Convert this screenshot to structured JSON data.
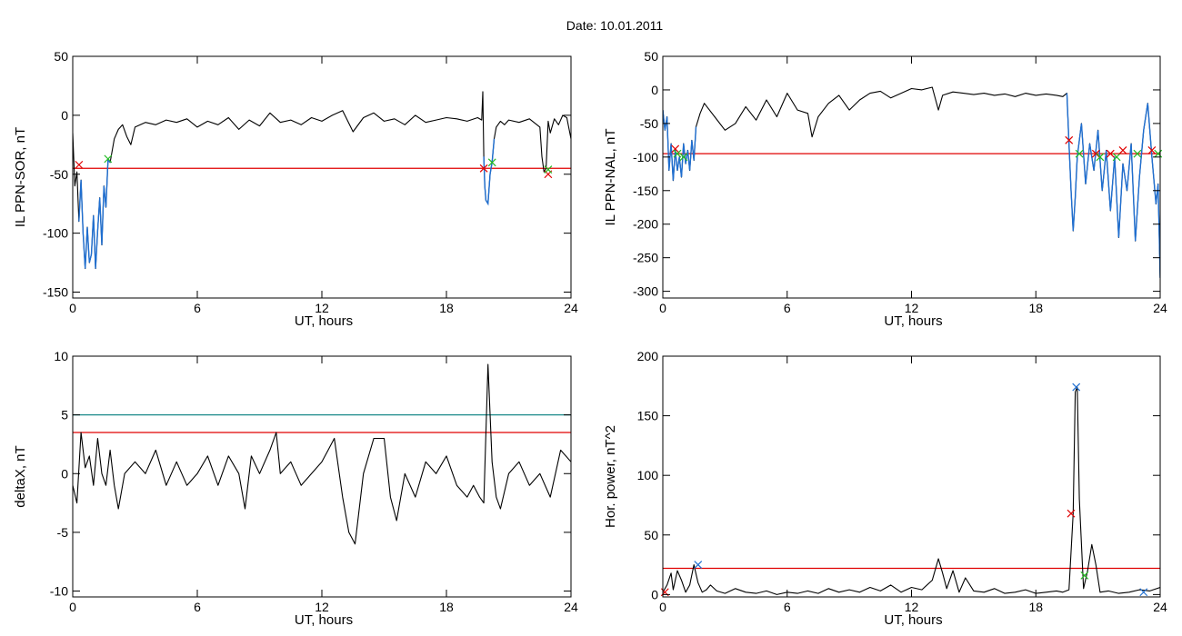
{
  "page_title": "Date:  10.01.2011",
  "colors": {
    "trace": "#000000",
    "highlight": "#1f6fd1",
    "threshold": "#e00000",
    "threshold_alt": "#1a8a8a",
    "marker_red": "#e00000",
    "marker_green": "#22bb22",
    "marker_blue": "#1f6fd1"
  },
  "chart_data": [
    {
      "id": "sor",
      "type": "line",
      "xlabel": "UT, hours",
      "ylabel": "IL PPN-SOR, nT",
      "xlim": [
        0,
        24
      ],
      "ylim": [
        -155,
        50
      ],
      "xticks": [
        0,
        6,
        12,
        18,
        24
      ],
      "yticks": [
        -150,
        -100,
        -50,
        0,
        50
      ],
      "thresholds": [
        {
          "value": -45,
          "color": "#e00000"
        }
      ],
      "series": [
        {
          "color": "#000000",
          "x": [
            0,
            0.1,
            0.2,
            0.3,
            0.4,
            0.5,
            0.6,
            0.7,
            0.8,
            0.9,
            1.0,
            1.1,
            1.2,
            1.3,
            1.4,
            1.5,
            1.6,
            1.7,
            1.8,
            2.0,
            2.2,
            2.4,
            2.6,
            2.8,
            3.0,
            3.5,
            4.0,
            4.5,
            5.0,
            5.5,
            6.0,
            6.5,
            7.0,
            7.5,
            8.0,
            8.5,
            9.0,
            9.5,
            10.0,
            10.5,
            11.0,
            11.5,
            12.0,
            12.5,
            13.0,
            13.5,
            14.0,
            14.5,
            15.0,
            15.5,
            16.0,
            16.5,
            17.0,
            17.5,
            18.0,
            18.5,
            19.0,
            19.5,
            19.7,
            19.75,
            19.8,
            19.85,
            19.9,
            20.0,
            20.1,
            20.2,
            20.3,
            20.4,
            20.6,
            20.8,
            21.0,
            21.5,
            22.0,
            22.5,
            22.6,
            22.7,
            22.8,
            22.9,
            23.0,
            23.2,
            23.4,
            23.6,
            23.8,
            24.0
          ],
          "y": [
            -15,
            -60,
            -48,
            -90,
            -55,
            -100,
            -130,
            -95,
            -125,
            -118,
            -85,
            -130,
            -98,
            -70,
            -110,
            -60,
            -78,
            -38,
            -40,
            -20,
            -12,
            -8,
            -18,
            -25,
            -10,
            -6,
            -8,
            -4,
            -6,
            -3,
            -10,
            -5,
            -8,
            -2,
            -12,
            -4,
            -9,
            2,
            -6,
            -4,
            -8,
            -2,
            -5,
            0,
            4,
            -14,
            -2,
            2,
            -5,
            -3,
            -8,
            0,
            -6,
            -4,
            -2,
            -3,
            -5,
            -2,
            -4,
            20,
            -35,
            -60,
            -72,
            -75,
            -50,
            -40,
            -20,
            -10,
            -5,
            -8,
            -4,
            -6,
            -3,
            -10,
            -35,
            -48,
            -45,
            -5,
            -15,
            -3,
            -8,
            0,
            -2,
            -20
          ],
          "highlight": [
            [
              0.3,
              1.8
            ],
            [
              19.8,
              20.3
            ]
          ]
        }
      ],
      "markers": [
        {
          "x": 0.3,
          "y": -42,
          "color": "#e00000"
        },
        {
          "x": 1.7,
          "y": -37,
          "color": "#22bb22"
        },
        {
          "x": 19.8,
          "y": -45,
          "color": "#e00000"
        },
        {
          "x": 20.2,
          "y": -40,
          "color": "#22bb22"
        },
        {
          "x": 22.9,
          "y": -50,
          "color": "#e00000"
        },
        {
          "x": 22.9,
          "y": -46,
          "color": "#22bb22"
        }
      ]
    },
    {
      "id": "nal",
      "type": "line",
      "xlabel": "UT, hours",
      "ylabel": "IL PPN-NAL, nT",
      "xlim": [
        0,
        24
      ],
      "ylim": [
        -310,
        50
      ],
      "xticks": [
        0,
        6,
        12,
        18,
        24
      ],
      "yticks": [
        -300,
        -250,
        -200,
        -150,
        -100,
        -50,
        0,
        50
      ],
      "thresholds": [
        {
          "value": -95,
          "color": "#e00000"
        }
      ],
      "series": [
        {
          "color": "#000000",
          "x": [
            0,
            0.1,
            0.2,
            0.3,
            0.4,
            0.5,
            0.6,
            0.7,
            0.8,
            0.9,
            1.0,
            1.1,
            1.2,
            1.3,
            1.4,
            1.5,
            1.6,
            1.8,
            2.0,
            2.5,
            3.0,
            3.5,
            4.0,
            4.5,
            5.0,
            5.5,
            6.0,
            6.5,
            7.0,
            7.2,
            7.5,
            8.0,
            8.5,
            9.0,
            9.5,
            10.0,
            10.5,
            11.0,
            11.5,
            12.0,
            12.5,
            13.0,
            13.3,
            13.5,
            14.0,
            14.5,
            15.0,
            15.5,
            16.0,
            16.5,
            17.0,
            17.5,
            18.0,
            18.5,
            19.0,
            19.3,
            19.5,
            19.6,
            19.7,
            19.8,
            19.9,
            20.0,
            20.2,
            20.4,
            20.6,
            20.8,
            21.0,
            21.2,
            21.4,
            21.6,
            21.8,
            22.0,
            22.2,
            22.4,
            22.6,
            22.8,
            23.0,
            23.2,
            23.4,
            23.6,
            23.8,
            23.9,
            24.0
          ],
          "y": [
            -30,
            -60,
            -40,
            -120,
            -80,
            -135,
            -90,
            -120,
            -100,
            -130,
            -80,
            -110,
            -90,
            -120,
            -75,
            -105,
            -55,
            -35,
            -20,
            -40,
            -60,
            -50,
            -25,
            -45,
            -15,
            -40,
            -5,
            -30,
            -35,
            -70,
            -40,
            -20,
            -8,
            -30,
            -15,
            -5,
            -2,
            -12,
            -5,
            2,
            0,
            4,
            -30,
            -8,
            -3,
            -5,
            -7,
            -5,
            -8,
            -6,
            -10,
            -5,
            -8,
            -6,
            -8,
            -10,
            -5,
            -80,
            -150,
            -210,
            -160,
            -100,
            -50,
            -140,
            -80,
            -120,
            -60,
            -150,
            -90,
            -180,
            -100,
            -220,
            -110,
            -150,
            -80,
            -225,
            -130,
            -60,
            -20,
            -100,
            -170,
            -140,
            -280
          ],
          "highlight": [
            [
              0,
              1.6
            ],
            [
              19.5,
              24
            ]
          ]
        }
      ],
      "markers": [
        {
          "x": 0.6,
          "y": -88,
          "color": "#e00000"
        },
        {
          "x": 0.7,
          "y": -95,
          "color": "#22bb22"
        },
        {
          "x": 1.0,
          "y": -100,
          "color": "#22bb22"
        },
        {
          "x": 19.6,
          "y": -75,
          "color": "#e00000"
        },
        {
          "x": 20.1,
          "y": -95,
          "color": "#22bb22"
        },
        {
          "x": 20.9,
          "y": -95,
          "color": "#e00000"
        },
        {
          "x": 21.1,
          "y": -100,
          "color": "#22bb22"
        },
        {
          "x": 21.6,
          "y": -95,
          "color": "#e00000"
        },
        {
          "x": 21.9,
          "y": -100,
          "color": "#22bb22"
        },
        {
          "x": 22.2,
          "y": -90,
          "color": "#e00000"
        },
        {
          "x": 22.9,
          "y": -95,
          "color": "#22bb22"
        },
        {
          "x": 23.6,
          "y": -90,
          "color": "#e00000"
        },
        {
          "x": 23.9,
          "y": -95,
          "color": "#22bb22"
        }
      ]
    },
    {
      "id": "deltax",
      "type": "line",
      "xlabel": "UT, hours",
      "ylabel": "deltaX, nT",
      "xlim": [
        0,
        24
      ],
      "ylim": [
        -10.5,
        10
      ],
      "xticks": [
        0,
        6,
        12,
        18,
        24
      ],
      "yticks": [
        -10,
        -5,
        0,
        5,
        10
      ],
      "thresholds": [
        {
          "value": 5,
          "color": "#1a8a8a"
        },
        {
          "value": 3.5,
          "color": "#e00000"
        }
      ],
      "series": [
        {
          "color": "#000000",
          "x": [
            0,
            0.2,
            0.4,
            0.6,
            0.8,
            1.0,
            1.2,
            1.4,
            1.6,
            1.8,
            2.0,
            2.2,
            2.5,
            3.0,
            3.5,
            4.0,
            4.5,
            5.0,
            5.5,
            6.0,
            6.5,
            7.0,
            7.5,
            8.0,
            8.3,
            8.6,
            9.0,
            9.5,
            9.8,
            10.0,
            10.5,
            11.0,
            11.5,
            12.0,
            12.3,
            12.6,
            13.0,
            13.3,
            13.6,
            14.0,
            14.5,
            15.0,
            15.3,
            15.6,
            16.0,
            16.5,
            17.0,
            17.5,
            18.0,
            18.5,
            19.0,
            19.3,
            19.6,
            19.8,
            20.0,
            20.2,
            20.4,
            20.6,
            21.0,
            21.5,
            22.0,
            22.5,
            23.0,
            23.5,
            24.0
          ],
          "y": [
            -1,
            -2.5,
            3.5,
            0.5,
            1.5,
            -1,
            3,
            0,
            -1,
            2,
            -1,
            -3,
            0,
            1,
            0,
            2,
            -1,
            1,
            -1,
            0,
            1.5,
            -1,
            1.5,
            0,
            -3,
            1.5,
            0,
            2,
            3.5,
            0,
            1,
            -1,
            0,
            1,
            2,
            3,
            -2,
            -5,
            -6,
            0,
            3,
            3,
            -2,
            -4,
            0,
            -2,
            1,
            0,
            1.5,
            -1,
            -2,
            -1,
            -2,
            -2.5,
            9.3,
            1,
            -2,
            -3,
            0,
            1,
            -1,
            0,
            -2,
            2,
            1
          ]
        }
      ],
      "markers": []
    },
    {
      "id": "power",
      "type": "line",
      "xlabel": "UT, hours",
      "ylabel": "Hor. power, nT^2",
      "xlim": [
        0,
        24
      ],
      "ylim": [
        -2,
        200
      ],
      "xticks": [
        0,
        6,
        12,
        18,
        24
      ],
      "yticks": [
        0,
        50,
        100,
        150,
        200
      ],
      "thresholds": [
        {
          "value": 22,
          "color": "#e00000"
        }
      ],
      "series": [
        {
          "color": "#000000",
          "x": [
            0,
            0.2,
            0.4,
            0.5,
            0.7,
            0.9,
            1.1,
            1.3,
            1.5,
            1.7,
            1.9,
            2.1,
            2.3,
            2.6,
            3.0,
            3.5,
            4.0,
            4.5,
            5.0,
            5.5,
            6.0,
            6.5,
            7.0,
            7.5,
            8.0,
            8.5,
            9.0,
            9.5,
            10.0,
            10.5,
            11.0,
            11.5,
            12.0,
            12.5,
            13.0,
            13.3,
            13.5,
            13.7,
            14.0,
            14.3,
            14.6,
            15.0,
            15.5,
            16.0,
            16.5,
            17.0,
            17.5,
            18.0,
            18.5,
            19.0,
            19.3,
            19.6,
            19.8,
            19.9,
            20.0,
            20.1,
            20.3,
            20.5,
            20.7,
            20.9,
            21.1,
            21.5,
            22.0,
            22.5,
            23.0,
            23.5,
            24.0
          ],
          "y": [
            2,
            8,
            18,
            4,
            20,
            12,
            2,
            8,
            25,
            10,
            2,
            4,
            8,
            3,
            1,
            5,
            2,
            1,
            3,
            0,
            2,
            1,
            3,
            1,
            5,
            2,
            4,
            2,
            6,
            3,
            8,
            2,
            6,
            4,
            12,
            30,
            18,
            5,
            20,
            2,
            14,
            3,
            2,
            5,
            1,
            2,
            4,
            1,
            2,
            3,
            2,
            4,
            68,
            170,
            174,
            80,
            5,
            20,
            42,
            25,
            2,
            3,
            1,
            2,
            4,
            3,
            6
          ]
        }
      ],
      "markers": [
        {
          "x": 0.1,
          "y": 2,
          "color": "#e00000"
        },
        {
          "x": 1.7,
          "y": 25,
          "color": "#1f6fd1"
        },
        {
          "x": 19.7,
          "y": 68,
          "color": "#e00000"
        },
        {
          "x": 19.95,
          "y": 174,
          "color": "#1f6fd1"
        },
        {
          "x": 20.35,
          "y": 16,
          "color": "#22bb22"
        },
        {
          "x": 23.2,
          "y": 2,
          "color": "#1f6fd1"
        }
      ]
    }
  ]
}
